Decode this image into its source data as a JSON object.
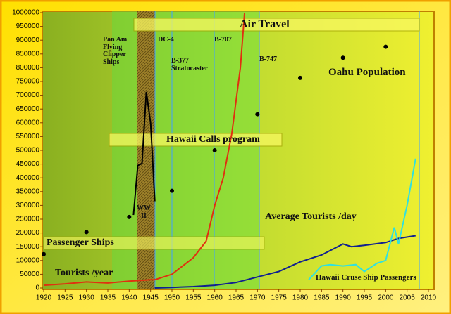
{
  "chart_data": {
    "type": "line",
    "xlim": [
      1920,
      2010
    ],
    "ylim": [
      0,
      1000000
    ],
    "xticks": [
      1920,
      1925,
      1930,
      1935,
      1940,
      1945,
      1950,
      1955,
      1960,
      1965,
      1970,
      1975,
      1980,
      1985,
      1990,
      1995,
      2000,
      2005,
      2010
    ],
    "yticks": [
      0,
      50000,
      100000,
      150000,
      200000,
      250000,
      300000,
      350000,
      400000,
      450000,
      500000,
      550000,
      600000,
      650000,
      700000,
      750000,
      800000,
      850000,
      900000,
      950000,
      1000000
    ],
    "annotations": [
      "Air Travel",
      "Pan Am Flying Clipper Ships",
      "DC-4",
      "B-707",
      "B-377 Stratocaster",
      "B-747",
      "Hawaii Calls program",
      "Passenger Ships"
    ],
    "series": [
      {
        "name": "Tourists /year",
        "color": "#e03010",
        "mode": "line",
        "x": [
          1920,
          1925,
          1930,
          1935,
          1940,
          1945,
          1946,
          1950,
          1955,
          1958,
          1960,
          1962,
          1964,
          1966,
          1967
        ],
        "values": [
          10000,
          15000,
          22000,
          18000,
          25000,
          30000,
          30000,
          50000,
          110000,
          170000,
          300000,
          400000,
          560000,
          800000,
          1000000
        ]
      },
      {
        "name": "Oahu Population",
        "color": "#000000",
        "mode": "markers",
        "x": [
          1920,
          1930,
          1940,
          1950,
          1960,
          1970,
          1980,
          1990,
          2000
        ],
        "values": [
          123000,
          203000,
          258000,
          353000,
          500000,
          631000,
          763000,
          836000,
          876000
        ]
      },
      {
        "name": "WW II",
        "color": "#000000",
        "mode": "line",
        "x": [
          1941,
          1942,
          1943,
          1944,
          1945,
          1946
        ],
        "values": [
          265000,
          445000,
          452000,
          712000,
          600000,
          315000
        ]
      },
      {
        "name": "Average Tourists /day",
        "color": "#102090",
        "mode": "line",
        "x": [
          1946,
          1950,
          1955,
          1960,
          1965,
          1970,
          1975,
          1980,
          1985,
          1990,
          1992,
          1995,
          2000,
          2003,
          2007
        ],
        "values": [
          0,
          2000,
          5000,
          10000,
          20000,
          40000,
          60000,
          95000,
          120000,
          160000,
          150000,
          155000,
          165000,
          180000,
          190000
        ]
      },
      {
        "name": "Hawaii Cruse Ship Passengers",
        "color": "#30e0e0",
        "mode": "line",
        "x": [
          1982,
          1985,
          1987,
          1990,
          1993,
          1995,
          1998,
          2000,
          2002,
          2003,
          2005,
          2007
        ],
        "values": [
          30000,
          80000,
          85000,
          80000,
          85000,
          60000,
          90000,
          100000,
          220000,
          160000,
          300000,
          470000
        ]
      }
    ]
  }
}
